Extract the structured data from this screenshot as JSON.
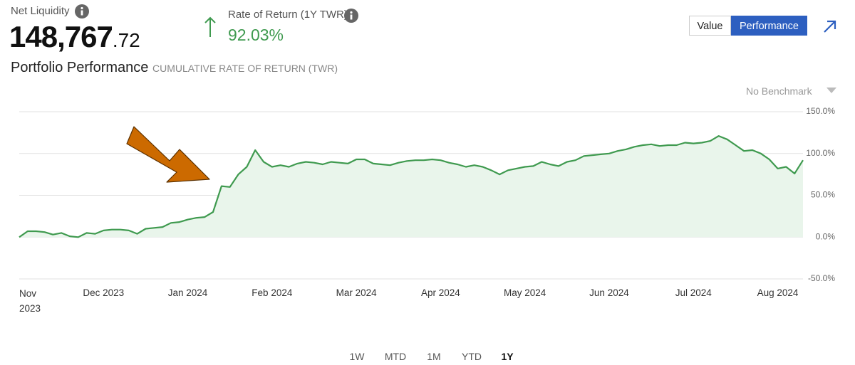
{
  "header": {
    "net_liquidity_label": "Net Liquidity",
    "net_liquidity_whole": "148,767",
    "net_liquidity_cents": ".72",
    "return_label": "Rate of Return (1Y TWR)",
    "return_value": "92.03%"
  },
  "toggle": {
    "options": [
      "Value",
      "Performance"
    ],
    "selected": 1
  },
  "section": {
    "title": "Portfolio Performance",
    "subtitle": "CUMULATIVE RATE OF RETURN (TWR)"
  },
  "benchmark": "No Benchmark",
  "chart_data": {
    "type": "area",
    "color": "#3f9a4f",
    "fill": "#e9f5eb",
    "grid": true,
    "categories": [
      "Nov 2023",
      null,
      null,
      null,
      null,
      null,
      null,
      null,
      null,
      null,
      "Dec 2023",
      null,
      null,
      null,
      null,
      null,
      null,
      null,
      null,
      null,
      "Jan 2024",
      null,
      null,
      null,
      null,
      null,
      null,
      null,
      null,
      null,
      "Feb 2024",
      null,
      null,
      null,
      null,
      null,
      null,
      null,
      null,
      null,
      "Mar 2024",
      null,
      null,
      null,
      null,
      null,
      null,
      null,
      null,
      null,
      "Apr 2024",
      null,
      null,
      null,
      null,
      null,
      null,
      null,
      null,
      null,
      "May 2024",
      null,
      null,
      null,
      null,
      null,
      null,
      null,
      null,
      null,
      "Jun 2024",
      null,
      null,
      null,
      null,
      null,
      null,
      null,
      null,
      null,
      "Jul 2024",
      null,
      null,
      null,
      null,
      null,
      null,
      null,
      null,
      null,
      "Aug 2024",
      null,
      null,
      null
    ],
    "values": [
      0,
      7,
      7,
      6,
      3,
      5,
      1,
      0,
      5,
      4,
      8,
      9,
      9,
      8,
      4,
      10,
      11,
      12,
      17,
      18,
      21,
      23,
      24,
      30,
      61,
      60,
      75,
      84,
      104,
      90,
      84,
      86,
      84,
      88,
      90,
      89,
      87,
      90,
      89,
      88,
      93,
      93,
      88,
      87,
      86,
      89,
      91,
      92,
      92,
      93,
      92,
      89,
      87,
      84,
      86,
      84,
      80,
      75,
      80,
      82,
      84,
      85,
      90,
      87,
      85,
      90,
      92,
      97,
      98,
      99,
      100,
      103,
      105,
      108,
      110,
      111,
      109,
      110,
      110,
      113,
      112,
      113,
      115,
      121,
      117,
      110,
      103,
      104,
      100,
      93,
      82,
      84,
      76,
      92
    ],
    "ylim": [
      -50,
      150
    ],
    "yticks": [
      {
        "value": 150,
        "label": "150.0%"
      },
      {
        "value": 100,
        "label": "100.0%"
      },
      {
        "value": 50,
        "label": "50.0%"
      },
      {
        "value": 0,
        "label": "0.0%"
      },
      {
        "value": -50,
        "label": "-50.0%"
      }
    ]
  },
  "ranges": {
    "options": [
      "1W",
      "MTD",
      "1M",
      "YTD",
      "1Y"
    ],
    "selected": 4
  }
}
